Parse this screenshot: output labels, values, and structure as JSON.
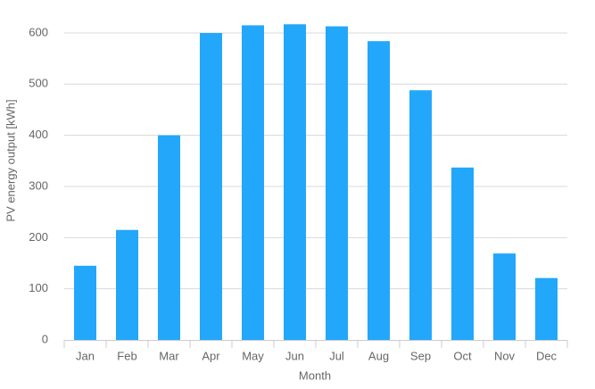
{
  "chart_data": {
    "type": "bar",
    "x_label": "Month",
    "y_label": "PV energy output [kWh]",
    "categories": [
      "Jan",
      "Feb",
      "Mar",
      "Apr",
      "May",
      "Jun",
      "Jul",
      "Aug",
      "Sep",
      "Oct",
      "Nov",
      "Dec"
    ],
    "values": [
      145,
      215,
      400,
      600,
      615,
      617,
      613,
      584,
      488,
      337,
      169,
      121
    ],
    "color": "#22a7fb",
    "ylim": [
      0,
      650
    ],
    "yticks": [
      0,
      100,
      200,
      300,
      400,
      500,
      600
    ],
    "grid": true
  }
}
